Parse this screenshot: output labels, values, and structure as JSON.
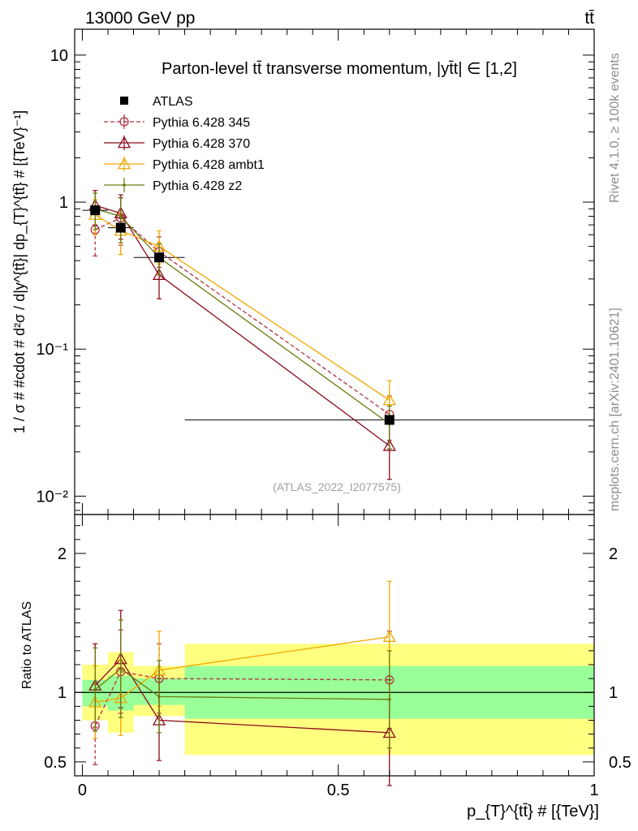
{
  "header": {
    "left": "13000 GeV pp",
    "right": "tt̄"
  },
  "side_labels": {
    "rivet": "Rivet 4.1.0, ≥ 100k events",
    "mcplots": "mcplots.cern.ch [arXiv:2401.10621]"
  },
  "chart_data": [
    {
      "type": "line",
      "panel": "main",
      "title": "Parton-level tt̄ transverse momentum, |yt̄t| ∈ [1,2]",
      "xlabel": "p_{T}^{tt̄} # [{TeV}]",
      "ylabel": "1 / σ # #cdot # d²σ / d|y^{tt̄}| dp_{T}^{tt̄} # [{TeV}⁻¹]",
      "yscale": "log",
      "xlim": [
        -0.015,
        1.0
      ],
      "ylim": [
        0.0075,
        15
      ],
      "y_ticks": [
        {
          "value": 0.01,
          "label": "10⁻²"
        },
        {
          "value": 0.1,
          "label": "10⁻¹"
        },
        {
          "value": 1,
          "label": "1"
        },
        {
          "value": 10,
          "label": "10"
        }
      ],
      "watermark": "(ATLAS_2022_I2077575)",
      "legend_position": "top-left",
      "x": [
        0.025,
        0.075,
        0.15,
        0.6
      ],
      "x_bin_edges": [
        0.0,
        0.05,
        0.1,
        0.2,
        1.0
      ],
      "data": {
        "name": "ATLAS",
        "values": [
          0.88,
          0.67,
          0.42,
          0.033
        ]
      },
      "series": [
        {
          "name": "Pythia 6.428 345",
          "color": "#b03040",
          "marker": "circle",
          "dashed": true,
          "values": [
            0.65,
            0.78,
            0.46,
            0.036
          ],
          "err_low": [
            0.22,
            0.27,
            0.1,
            0.012
          ],
          "err_high": [
            0.2,
            0.29,
            0.12,
            0.012
          ]
        },
        {
          "name": "Pythia 6.428 370",
          "color": "#8b0a1a",
          "marker": "triangle",
          "dashed": false,
          "values": [
            0.95,
            0.84,
            0.32,
            0.022
          ],
          "err_low": [
            0.25,
            0.28,
            0.1,
            0.009
          ],
          "err_high": [
            0.25,
            0.28,
            0.1,
            0.009
          ]
        },
        {
          "name": "Pythia 6.428 ambt1",
          "color": "#f0a800",
          "marker": "triangle",
          "dashed": false,
          "values": [
            0.82,
            0.64,
            0.5,
            0.045
          ],
          "err_low": [
            0.22,
            0.2,
            0.12,
            0.014
          ],
          "err_high": [
            0.22,
            0.2,
            0.14,
            0.016
          ]
        },
        {
          "name": "Pythia 6.428 z2",
          "color": "#6b7a0c",
          "marker": "dot",
          "dashed": false,
          "values": [
            0.9,
            0.8,
            0.42,
            0.031
          ],
          "err_low": [
            0.25,
            0.27,
            0.1,
            0.01
          ],
          "err_high": [
            0.25,
            0.27,
            0.1,
            0.01
          ]
        }
      ]
    },
    {
      "type": "line",
      "panel": "ratio",
      "ylabel": "Ratio to ATLAS",
      "xlabel": "p_{T}^{tt̄} # [{TeV}]",
      "xlim": [
        -0.015,
        1.0
      ],
      "ylim": [
        0.4,
        2.28
      ],
      "y_ticks": [
        {
          "value": 0.5,
          "label": "0.5"
        },
        {
          "value": 1,
          "label": "1"
        },
        {
          "value": 2,
          "label": "2"
        }
      ],
      "x_ticks": [
        {
          "value": 0,
          "label": "0"
        },
        {
          "value": 0.5,
          "label": "0.5"
        },
        {
          "value": 1,
          "label": "1"
        }
      ],
      "uncertainty_bands": [
        {
          "x0": 0.0,
          "x1": 0.05,
          "stat_low": 0.9,
          "stat_high": 1.09,
          "total_low": 0.8,
          "total_high": 1.2
        },
        {
          "x0": 0.05,
          "x1": 0.1,
          "stat_low": 0.87,
          "stat_high": 1.12,
          "total_low": 0.71,
          "total_high": 1.29
        },
        {
          "x0": 0.1,
          "x1": 0.2,
          "stat_low": 0.91,
          "stat_high": 1.1,
          "total_low": 0.83,
          "total_high": 1.19
        },
        {
          "x0": 0.2,
          "x1": 1.0,
          "stat_low": 0.81,
          "stat_high": 1.19,
          "total_low": 0.55,
          "total_high": 1.35
        }
      ],
      "x": [
        0.025,
        0.075,
        0.15,
        0.6
      ],
      "series": [
        {
          "name": "Pythia 6.428 345",
          "color": "#b03040",
          "marker": "circle",
          "dashed": true,
          "values": [
            0.76,
            1.15,
            1.1,
            1.09
          ],
          "err_low": [
            0.28,
            0.3,
            0.25,
            0.35
          ],
          "err_high": [
            0.3,
            0.3,
            0.25,
            0.35
          ]
        },
        {
          "name": "Pythia 6.428 370",
          "color": "#8b0a1a",
          "marker": "triangle",
          "dashed": false,
          "values": [
            1.05,
            1.24,
            0.8,
            0.71
          ],
          "err_low": [
            0.3,
            0.35,
            0.29,
            0.38
          ],
          "err_high": [
            0.3,
            0.35,
            0.3,
            0.38
          ]
        },
        {
          "name": "Pythia 6.428 ambt1",
          "color": "#f0a800",
          "marker": "triangle",
          "dashed": false,
          "values": [
            0.93,
            0.96,
            1.16,
            1.4
          ],
          "err_low": [
            0.26,
            0.27,
            0.26,
            0.45
          ],
          "err_high": [
            0.26,
            0.27,
            0.28,
            0.4
          ]
        },
        {
          "name": "Pythia 6.428 z2",
          "color": "#6b7a0c",
          "marker": "dot",
          "dashed": false,
          "values": [
            1.02,
            1.17,
            0.97,
            0.95
          ],
          "err_low": [
            0.3,
            0.35,
            0.26,
            0.35
          ],
          "err_high": [
            0.3,
            0.35,
            0.26,
            0.35
          ]
        }
      ]
    }
  ]
}
